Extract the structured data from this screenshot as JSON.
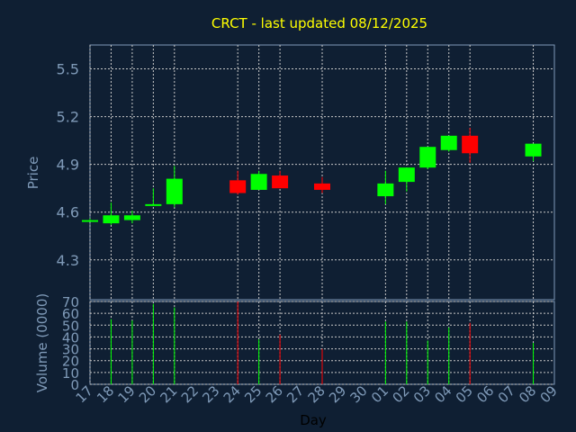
{
  "chart_data": [
    {
      "type": "candlestick",
      "title": "CRCT - last updated 08/12/2025",
      "ylabel": "Price",
      "ylim": [
        4.05,
        5.65
      ],
      "yticks": [
        "4.3",
        "4.6",
        "4.9",
        "5.2",
        "5.5"
      ],
      "colors": {
        "up": "#00ff00",
        "down": "#ff0000",
        "grid": "#c8c8c8",
        "frame": "#7f9ab8",
        "background": "#0f1f33"
      },
      "candles": [
        {
          "day": "17",
          "open": 4.55,
          "high": 4.56,
          "low": 4.55,
          "close": 4.55
        },
        {
          "day": "18",
          "open": 4.53,
          "high": 4.66,
          "low": 4.52,
          "close": 4.58
        },
        {
          "day": "19",
          "open": 4.55,
          "high": 4.61,
          "low": 4.53,
          "close": 4.58
        },
        {
          "day": "20",
          "open": 4.65,
          "high": 4.75,
          "low": 4.64,
          "close": 4.65
        },
        {
          "day": "21",
          "open": 4.65,
          "high": 4.89,
          "low": 4.63,
          "close": 4.81
        },
        {
          "day": "24",
          "open": 4.8,
          "high": 4.86,
          "low": 4.71,
          "close": 4.72
        },
        {
          "day": "25",
          "open": 4.74,
          "high": 4.86,
          "low": 4.74,
          "close": 4.84
        },
        {
          "day": "26",
          "open": 4.83,
          "high": 4.86,
          "low": 4.75,
          "close": 4.75
        },
        {
          "day": "28",
          "open": 4.78,
          "high": 4.82,
          "low": 4.72,
          "close": 4.74
        },
        {
          "day": "01",
          "open": 4.7,
          "high": 4.86,
          "low": 4.65,
          "close": 4.78
        },
        {
          "day": "02",
          "open": 4.79,
          "high": 4.88,
          "low": 4.73,
          "close": 4.88
        },
        {
          "day": "03",
          "open": 4.88,
          "high": 5.01,
          "low": 4.87,
          "close": 5.01
        },
        {
          "day": "04",
          "open": 4.99,
          "high": 5.08,
          "low": 4.98,
          "close": 5.08
        },
        {
          "day": "05",
          "open": 5.08,
          "high": 5.13,
          "low": 4.91,
          "close": 4.97
        },
        {
          "day": "08",
          "open": 4.95,
          "high": 5.03,
          "low": 4.92,
          "close": 5.03
        }
      ]
    },
    {
      "type": "bar",
      "ylabel": "Volume (0000)",
      "xlabel": "Day",
      "ylim": [
        0,
        70
      ],
      "yticks": [
        "0",
        "10",
        "20",
        "30",
        "40",
        "50",
        "60",
        "70"
      ],
      "categories": [
        "17",
        "18",
        "19",
        "20",
        "21",
        "22",
        "23",
        "24",
        "25",
        "26",
        "27",
        "28",
        "29",
        "30",
        "01",
        "02",
        "03",
        "04",
        "05",
        "06",
        "07",
        "08",
        "09"
      ],
      "volumes": [
        {
          "day": "18",
          "value": 55,
          "direction": "up"
        },
        {
          "day": "19",
          "value": 54,
          "direction": "up"
        },
        {
          "day": "20",
          "value": 68,
          "direction": "up"
        },
        {
          "day": "21",
          "value": 65,
          "direction": "up"
        },
        {
          "day": "24",
          "value": 70,
          "direction": "down"
        },
        {
          "day": "25",
          "value": 38,
          "direction": "up"
        },
        {
          "day": "26",
          "value": 42,
          "direction": "down"
        },
        {
          "day": "28",
          "value": 30,
          "direction": "down"
        },
        {
          "day": "01",
          "value": 53,
          "direction": "up"
        },
        {
          "day": "02",
          "value": 53,
          "direction": "up"
        },
        {
          "day": "03",
          "value": 37,
          "direction": "up"
        },
        {
          "day": "04",
          "value": 48,
          "direction": "up"
        },
        {
          "day": "05",
          "value": 52,
          "direction": "down"
        },
        {
          "day": "08",
          "value": 35,
          "direction": "up"
        }
      ]
    }
  ]
}
